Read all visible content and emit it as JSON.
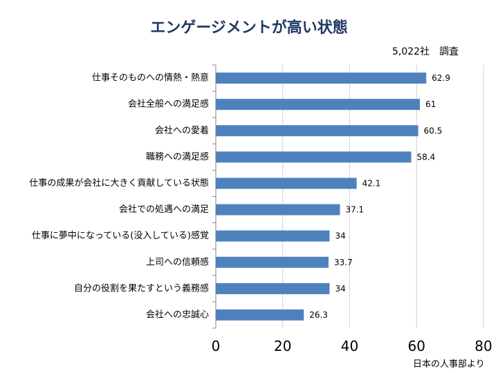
{
  "title": "エンゲージメントが高い状態",
  "note": "5,022社　調査",
  "source": "日本の人事部より",
  "colors": {
    "bar": "#4f81bd",
    "title": "#1f3864",
    "axis": "#868686"
  },
  "chart_data": {
    "type": "bar",
    "orientation": "horizontal",
    "categories": [
      "仕事そのものへの情熱・熱意",
      "会社全般への満足感",
      "会社への愛着",
      "職務への満足感",
      "仕事の成果が会社に大きく貢献している状態",
      "会社での処遇への満足",
      "仕事に夢中になっている(没入している)感覚",
      "上司への信頼感",
      "自分の役割を果たすという義務感",
      "会社への忠誠心"
    ],
    "values": [
      62.9,
      61,
      60.5,
      58.4,
      42.1,
      37.1,
      34,
      33.7,
      34,
      26.3
    ],
    "value_labels": [
      "62.9",
      "61",
      "60.5",
      "58.4",
      "42.1",
      "37.1",
      "34",
      "33.7",
      "34",
      "26.3"
    ],
    "xlim": [
      0,
      80
    ],
    "xticks": [
      0,
      20,
      40,
      60,
      80
    ],
    "grid": "vertical",
    "legend": "none"
  }
}
